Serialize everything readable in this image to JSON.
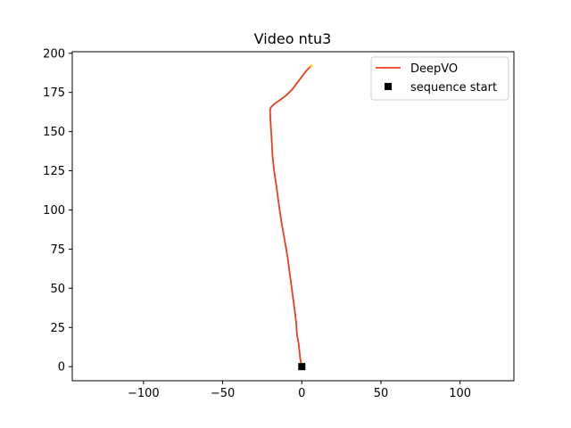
{
  "chart_data": {
    "type": "line",
    "title": "Video ntu3",
    "xlabel": "",
    "ylabel": "",
    "xlim": [
      -145,
      134
    ],
    "ylim": [
      -9,
      201
    ],
    "x_ticks": [
      -100,
      -50,
      0,
      50,
      100
    ],
    "y_ticks": [
      0,
      25,
      50,
      75,
      100,
      125,
      150,
      175,
      200
    ],
    "x_tick_labels": [
      "−100",
      "−50",
      "0",
      "50",
      "100"
    ],
    "y_tick_labels": [
      "0",
      "25",
      "50",
      "75",
      "100",
      "125",
      "150",
      "175",
      "200"
    ],
    "grid": false,
    "legend_position": "top-right",
    "legend": [
      {
        "label": "DeepVO",
        "marker": "line",
        "color": "#e8401c"
      },
      {
        "label": "sequence start",
        "marker": "square",
        "color": "#000000"
      }
    ],
    "series": [
      {
        "name": "DeepVO",
        "color": "#e8401c",
        "x": [
          0,
          -1,
          -1.5,
          -2,
          -3,
          -3.5,
          -5,
          -7,
          -9,
          -11,
          -12.5,
          -14,
          -16,
          -17.5,
          -18.5,
          -19,
          -19.5,
          -19.8,
          -20,
          -20,
          -19.8,
          -19,
          -17,
          -14,
          -10,
          -6,
          -3,
          0,
          3,
          6
        ],
        "y": [
          0,
          5,
          10,
          15,
          20,
          28,
          40,
          55,
          70,
          82,
          90,
          100,
          115,
          125,
          135,
          145,
          152,
          158,
          162,
          164,
          165,
          166,
          168,
          170,
          173,
          177,
          181,
          185,
          189,
          192
        ]
      }
    ],
    "end_marker": {
      "x": 6,
      "y": 192,
      "color": "#ffd700"
    },
    "start_point": {
      "name": "sequence start",
      "x": 0,
      "y": 0,
      "color": "#000000"
    }
  }
}
